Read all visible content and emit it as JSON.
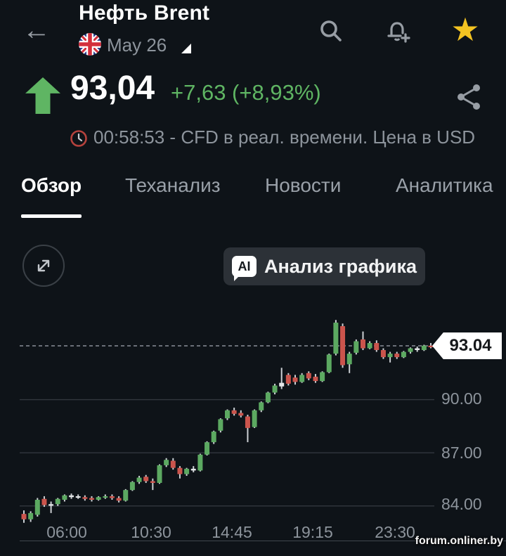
{
  "header": {
    "title": "Нефть Brent",
    "date_label": "May 26",
    "icons": {
      "back": "arrow-left",
      "flag": "uk-flag",
      "dropdown": "caret-down",
      "search": "magnifier",
      "alerts": "bell-plus",
      "favorite": "star-filled"
    }
  },
  "price": {
    "direction": "up",
    "value": "93,04",
    "change": "+7,63 (+8,93%)",
    "info": "00:58:53 - CFD в реал. времени. Цена в USD",
    "share_icon": "share-nodes",
    "clock_icon": "clock-red"
  },
  "tabs": [
    {
      "label": "Обзор",
      "active": true
    },
    {
      "label": "Теханализ",
      "active": false
    },
    {
      "label": "Новости",
      "active": false
    },
    {
      "label": "Аналитика",
      "active": false
    }
  ],
  "chart_toolbar": {
    "expand_icon": "expand-diagonal-arrows",
    "ai_badge": "AI",
    "ai_button_label": "Анализ графика"
  },
  "chart": {
    "price_tag": "93.04",
    "y_labels": [
      "90.00",
      "87.00",
      "84.00"
    ],
    "x_labels": [
      "06:00",
      "10:30",
      "14:45",
      "19:15",
      "23:30"
    ]
  },
  "watermark": "forum.onliner.by",
  "colors": {
    "background": "#0e1318",
    "accent_green": "#5fb563",
    "candle_green": "#5ca961",
    "candle_red": "#cb544c",
    "candle_neutral": "#e4e6e8",
    "wick": "#ccd0d4",
    "grid": "#32373e",
    "dashed_line": "#8a9097",
    "muted_text": "#8d949c",
    "star_gold": "#f3c322",
    "clock_red": "#b5423d",
    "tag_bg": "#ffffff"
  },
  "chart_data": {
    "type": "candlestick",
    "title": "Нефть Brent CFD intraday",
    "current_price": 93.04,
    "ylim": [
      82.8,
      94.9
    ],
    "grid_values": [
      90.0,
      87.0,
      84.0
    ],
    "y_tick_labels": [
      "90.00",
      "87.00",
      "84.00"
    ],
    "x_tick_labels": [
      "06:00",
      "10:30",
      "14:45",
      "19:15",
      "23:30"
    ],
    "legend": "none",
    "candles_format": [
      "open",
      "high",
      "low",
      "close",
      "color g=green r=red n=neutral"
    ],
    "candles": [
      [
        83.55,
        83.75,
        83.05,
        83.25,
        "r"
      ],
      [
        83.25,
        83.7,
        83.1,
        83.6,
        "g"
      ],
      [
        83.5,
        84.45,
        83.4,
        84.35,
        "g"
      ],
      [
        84.4,
        84.55,
        83.95,
        84.05,
        "r"
      ],
      [
        84.1,
        84.25,
        83.6,
        84.1,
        "n"
      ],
      [
        84.1,
        84.45,
        84.0,
        84.4,
        "g"
      ],
      [
        84.35,
        84.65,
        84.25,
        84.6,
        "g"
      ],
      [
        84.5,
        84.7,
        84.4,
        84.6,
        "n"
      ],
      [
        84.55,
        84.65,
        84.4,
        84.5,
        "n"
      ],
      [
        84.5,
        84.6,
        84.3,
        84.4,
        "r"
      ],
      [
        84.45,
        84.55,
        84.25,
        84.35,
        "r"
      ],
      [
        84.35,
        84.55,
        84.3,
        84.5,
        "g"
      ],
      [
        84.5,
        84.65,
        84.4,
        84.55,
        "g"
      ],
      [
        84.55,
        84.65,
        84.35,
        84.45,
        "r"
      ],
      [
        84.45,
        84.55,
        84.2,
        84.3,
        "r"
      ],
      [
        84.3,
        84.95,
        84.25,
        84.9,
        "g"
      ],
      [
        84.9,
        85.4,
        84.85,
        85.35,
        "g"
      ],
      [
        85.35,
        85.7,
        85.25,
        85.6,
        "g"
      ],
      [
        85.65,
        85.75,
        85.3,
        85.4,
        "r"
      ],
      [
        85.4,
        85.55,
        84.9,
        85.3,
        "r"
      ],
      [
        85.3,
        86.35,
        85.25,
        86.3,
        "g"
      ],
      [
        86.3,
        86.7,
        86.2,
        86.6,
        "g"
      ],
      [
        86.55,
        86.7,
        86.05,
        86.15,
        "r"
      ],
      [
        86.15,
        86.25,
        85.55,
        85.8,
        "r"
      ],
      [
        85.8,
        86.15,
        85.7,
        86.1,
        "g"
      ],
      [
        86.1,
        86.25,
        85.9,
        86.0,
        "n"
      ],
      [
        86.0,
        86.95,
        85.95,
        86.9,
        "g"
      ],
      [
        86.9,
        87.65,
        86.85,
        87.6,
        "g"
      ],
      [
        87.6,
        88.25,
        87.5,
        88.2,
        "g"
      ],
      [
        88.25,
        88.95,
        88.15,
        88.9,
        "g"
      ],
      [
        88.95,
        89.45,
        88.85,
        89.4,
        "g"
      ],
      [
        89.4,
        89.55,
        89.1,
        89.2,
        "r"
      ],
      [
        89.25,
        89.4,
        89.0,
        89.1,
        "r"
      ],
      [
        89.05,
        89.15,
        87.6,
        88.4,
        "r"
      ],
      [
        88.45,
        89.45,
        88.4,
        89.4,
        "g"
      ],
      [
        89.4,
        89.9,
        89.3,
        89.85,
        "g"
      ],
      [
        89.85,
        90.45,
        89.8,
        90.4,
        "g"
      ],
      [
        90.4,
        90.9,
        90.3,
        90.8,
        "g"
      ],
      [
        90.75,
        91.8,
        90.6,
        90.95,
        "n"
      ],
      [
        91.4,
        91.5,
        90.8,
        90.9,
        "r"
      ],
      [
        91.25,
        91.4,
        90.85,
        91.0,
        "r"
      ],
      [
        91.0,
        91.5,
        90.95,
        91.4,
        "g"
      ],
      [
        91.5,
        91.6,
        91.1,
        91.2,
        "r"
      ],
      [
        91.3,
        91.45,
        90.95,
        91.05,
        "r"
      ],
      [
        91.05,
        91.6,
        91.0,
        91.55,
        "g"
      ],
      [
        91.55,
        92.6,
        91.5,
        92.55,
        "g"
      ],
      [
        92.6,
        94.5,
        92.5,
        94.35,
        "g"
      ],
      [
        94.15,
        94.3,
        91.8,
        91.95,
        "r"
      ],
      [
        92.0,
        92.7,
        91.5,
        92.6,
        "g"
      ],
      [
        92.65,
        93.4,
        92.55,
        93.3,
        "g"
      ],
      [
        93.4,
        93.85,
        92.8,
        92.9,
        "r"
      ],
      [
        92.9,
        93.3,
        92.85,
        93.2,
        "g"
      ],
      [
        93.2,
        93.35,
        92.7,
        92.8,
        "r"
      ],
      [
        92.8,
        92.9,
        92.3,
        92.4,
        "r"
      ],
      [
        92.4,
        92.7,
        92.1,
        92.6,
        "g"
      ],
      [
        92.6,
        92.7,
        92.3,
        92.4,
        "r"
      ],
      [
        92.4,
        92.75,
        92.35,
        92.7,
        "g"
      ],
      [
        92.7,
        92.95,
        92.6,
        92.9,
        "g"
      ],
      [
        92.9,
        93.0,
        92.7,
        92.8,
        "n"
      ],
      [
        92.8,
        93.1,
        92.75,
        93.05,
        "g"
      ],
      [
        93.05,
        93.2,
        92.9,
        93.04,
        "r"
      ]
    ]
  }
}
